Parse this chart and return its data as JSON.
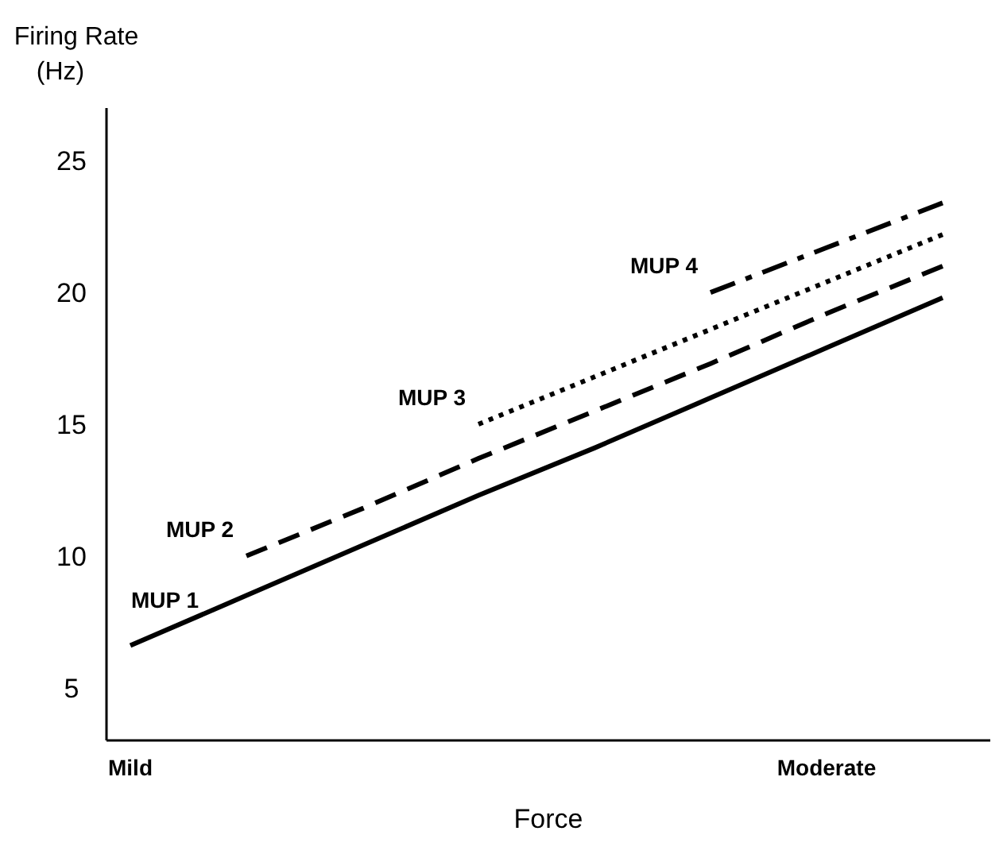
{
  "chart_data": {
    "type": "line",
    "ylabel": "Firing Rate (Hz)",
    "xlabel": "Force",
    "categories": [
      "Mild",
      null,
      null,
      null,
      null,
      null,
      "Moderate",
      null
    ],
    "ylim": [
      3,
      27
    ],
    "yticks": [
      5,
      10,
      15,
      20,
      25
    ],
    "series": [
      {
        "name": "MUP 1",
        "color": "#000000",
        "line_style": "solid",
        "values": [
          6.6,
          8.5,
          10.4,
          12.3,
          14.1,
          16.0,
          17.9,
          19.8
        ]
      },
      {
        "name": "MUP 2",
        "color": "#000000",
        "line_style": "dashed",
        "values": [
          null,
          10,
          11.8,
          13.7,
          15.5,
          17.3,
          19.2,
          21
        ]
      },
      {
        "name": "MUP 3",
        "color": "#000000",
        "line_style": "dotted",
        "values": [
          null,
          null,
          null,
          15,
          16.8,
          18.6,
          20.4,
          22.2
        ]
      },
      {
        "name": "MUP 4",
        "color": "#000000",
        "line_style": "dashdot",
        "values": [
          null,
          null,
          null,
          null,
          null,
          20,
          21.7,
          23.4
        ]
      }
    ]
  }
}
